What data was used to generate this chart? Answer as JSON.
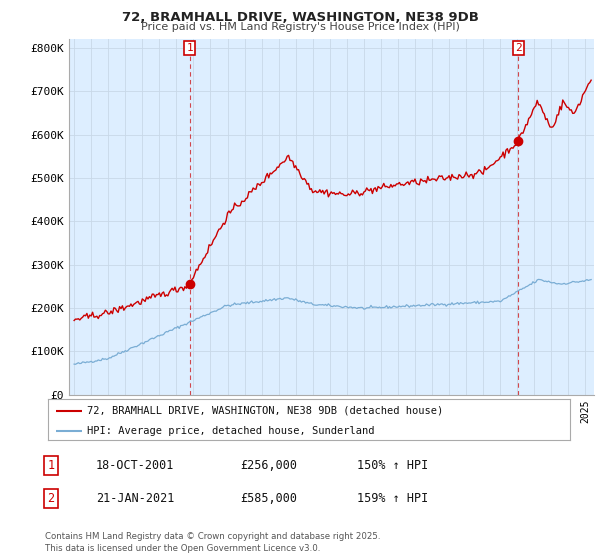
{
  "title": "72, BRAMHALL DRIVE, WASHINGTON, NE38 9DB",
  "subtitle": "Price paid vs. HM Land Registry's House Price Index (HPI)",
  "ylabel_ticks": [
    "£0",
    "£100K",
    "£200K",
    "£300K",
    "£400K",
    "£500K",
    "£600K",
    "£700K",
    "£800K"
  ],
  "ytick_values": [
    0,
    100000,
    200000,
    300000,
    400000,
    500000,
    600000,
    700000,
    800000
  ],
  "ylim": [
    0,
    820000
  ],
  "xlim_start": 1994.7,
  "xlim_end": 2025.5,
  "line1_color": "#cc0000",
  "line2_color": "#7aadd4",
  "sale1_x": 2001.79,
  "sale1_y": 256000,
  "sale2_x": 2021.05,
  "sale2_y": 585000,
  "legend_line1": "72, BRAMHALL DRIVE, WASHINGTON, NE38 9DB (detached house)",
  "legend_line2": "HPI: Average price, detached house, Sunderland",
  "table_row1": [
    "1",
    "18-OCT-2001",
    "£256,000",
    "150% ↑ HPI"
  ],
  "table_row2": [
    "2",
    "21-JAN-2021",
    "£585,000",
    "159% ↑ HPI"
  ],
  "footnote": "Contains HM Land Registry data © Crown copyright and database right 2025.\nThis data is licensed under the Open Government Licence v3.0.",
  "grid_color": "#c8d8e8",
  "plot_bg_color": "#ddeeff",
  "background_color": "#ffffff"
}
